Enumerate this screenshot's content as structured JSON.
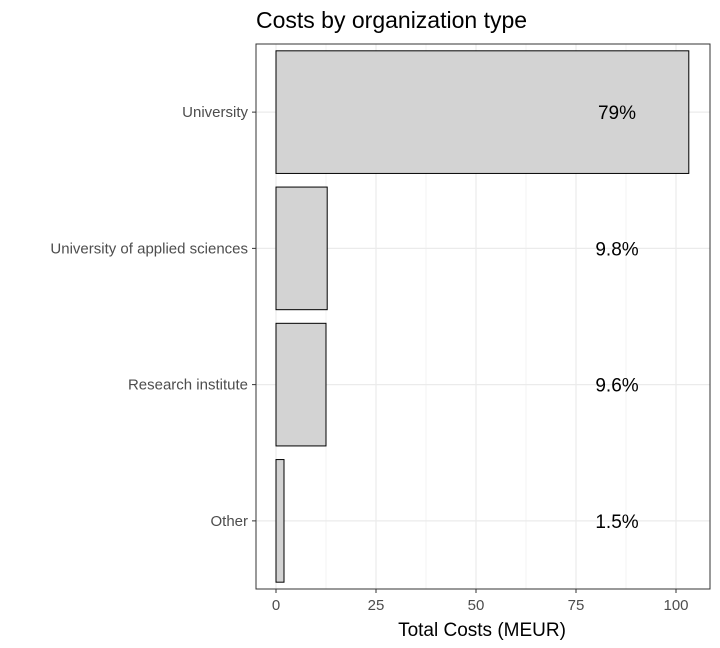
{
  "chart_data": {
    "type": "bar",
    "orientation": "horizontal",
    "title": "Costs by organization type",
    "xlabel": "Total Costs (MEUR)",
    "ylabel": "",
    "xlim": [
      0,
      100
    ],
    "xticks": [
      0,
      25,
      50,
      75,
      100
    ],
    "categories": [
      "University",
      "University of applied sciences",
      "Research institute",
      "Other"
    ],
    "values": [
      103.2,
      12.8,
      12.5,
      2.0
    ],
    "data_labels": [
      "79%",
      "9.8%",
      "9.6%",
      "1.5%"
    ],
    "grid": true,
    "legend": "none",
    "colors": {
      "bar_fill": "#d3d3d3",
      "bar_stroke": "#000000",
      "grid": "#ebebeb",
      "panel_border": "#333333",
      "tick_label": "#4d4d4d"
    }
  }
}
